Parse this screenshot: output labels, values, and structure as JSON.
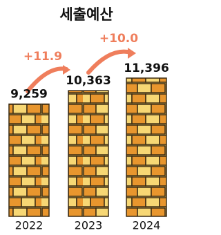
{
  "chart_data": {
    "type": "bar",
    "title": "세출예산",
    "categories": [
      "2022",
      "2023",
      "2024"
    ],
    "values": [
      9259,
      10363,
      11396
    ],
    "value_labels": [
      "9,259",
      "10,363",
      "11,396"
    ],
    "annotations": [
      "+11.9",
      "+10.0"
    ],
    "color": "#e8962e"
  }
}
